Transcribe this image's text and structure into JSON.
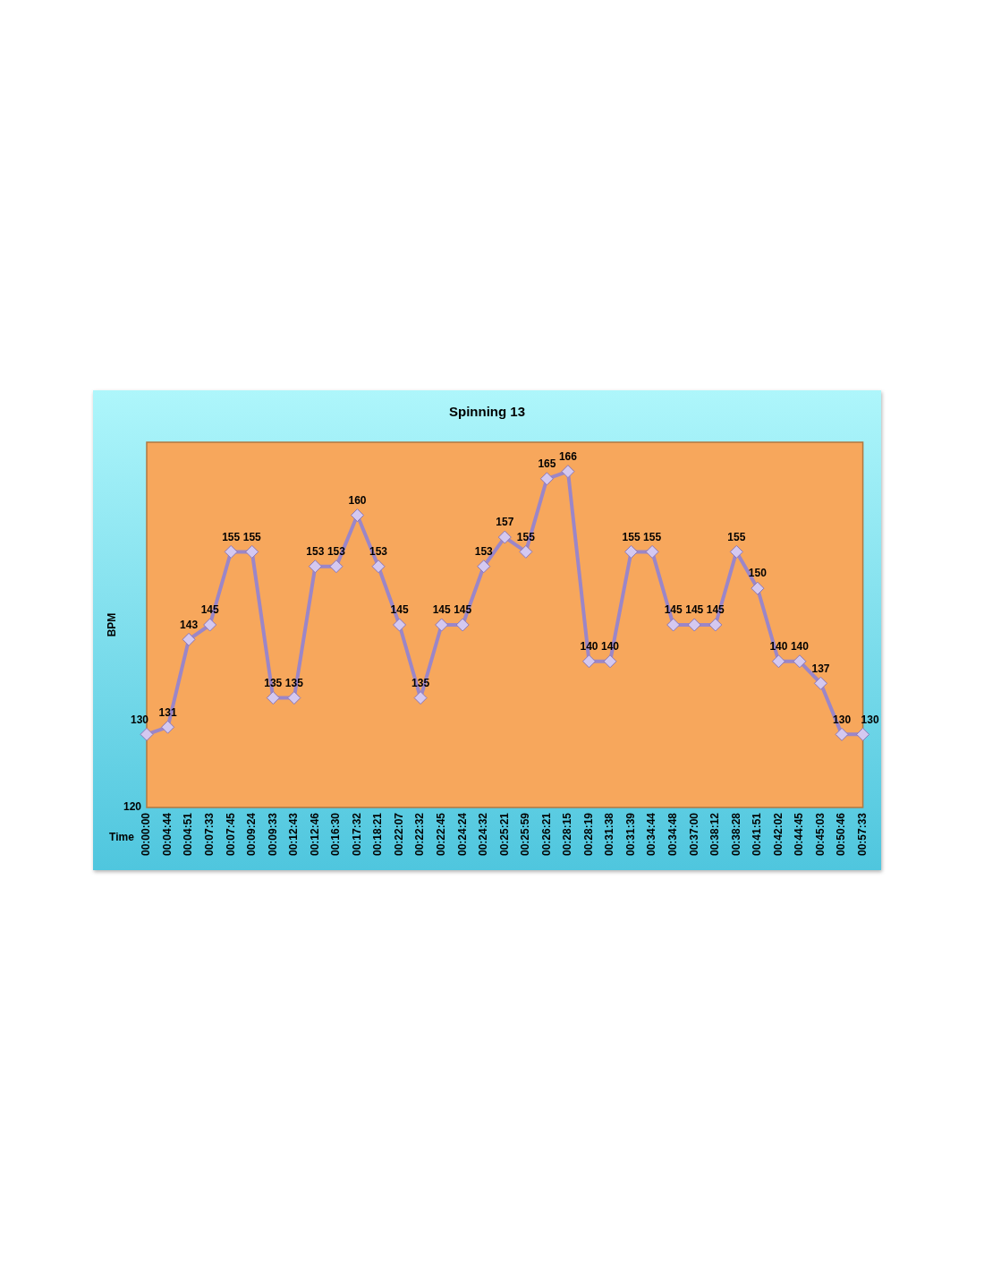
{
  "chart_data": {
    "type": "line",
    "title": "Spinning 13",
    "xlabel": "Time",
    "ylabel": "BPM",
    "categories": [
      "00:00:00",
      "00:04:44",
      "00:04:51",
      "00:07:33",
      "00:07:45",
      "00:09:24",
      "00:09:33",
      "00:12:43",
      "00:12:46",
      "00:16:30",
      "00:17:32",
      "00:18:21",
      "00:22:07",
      "00:22:32",
      "00:22:45",
      "00:24:24",
      "00:24:32",
      "00:25:21",
      "00:25:59",
      "00:26:21",
      "00:28:15",
      "00:28:19",
      "00:31:38",
      "00:31:39",
      "00:34:44",
      "00:34:48",
      "00:37:00",
      "00:38:12",
      "00:38:28",
      "00:41:51",
      "00:42:02",
      "00:44:45",
      "00:45:03",
      "00:50:46",
      "00:57:33"
    ],
    "series": [
      {
        "color": "#9b86c8",
        "values": [
          130,
          131,
          143,
          145,
          155,
          155,
          135,
          135,
          153,
          153,
          160,
          153,
          145,
          135,
          145,
          145,
          153,
          157,
          155,
          165,
          166,
          140,
          140,
          155,
          155,
          145,
          145,
          145,
          155,
          150,
          140,
          140,
          137,
          130,
          130
        ]
      }
    ],
    "ylim": [
      120,
      170
    ],
    "annotations": [
      "120"
    ],
    "grid": false,
    "legend": false,
    "marker": "diamond",
    "line_style": "solid",
    "data_labels": true
  }
}
